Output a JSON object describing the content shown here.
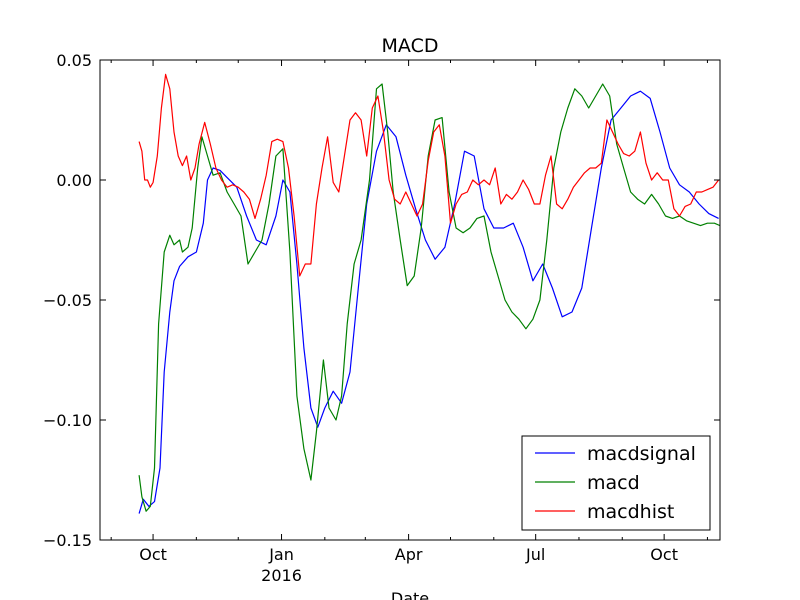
{
  "chart_data": {
    "type": "line",
    "title": "MACD",
    "xlabel": "Date",
    "ylabel": "",
    "ylim": [
      -0.15,
      0.05
    ],
    "yticks": [
      {
        "value": 0.05,
        "label": "0.05"
      },
      {
        "value": 0.0,
        "label": "0.00"
      },
      {
        "value": -0.05,
        "label": "−0.05"
      },
      {
        "value": -0.1,
        "label": "−0.10"
      },
      {
        "value": -0.15,
        "label": "−0.15"
      }
    ],
    "xlim": [
      "2015-08-24",
      "2016-11-10"
    ],
    "xticks": [
      {
        "date": "2015-10-01",
        "label": "Oct",
        "sublabel": ""
      },
      {
        "date": "2016-01-01",
        "label": "Jan",
        "sublabel": "2016"
      },
      {
        "date": "2016-04-01",
        "label": "Apr",
        "sublabel": ""
      },
      {
        "date": "2016-07-01",
        "label": "Jul",
        "sublabel": ""
      },
      {
        "date": "2016-10-01",
        "label": "Oct",
        "sublabel": ""
      }
    ],
    "minor_xticks": [
      "2015-09-01",
      "2015-11-01",
      "2015-12-01",
      "2016-02-01",
      "2016-03-01",
      "2016-05-01",
      "2016-06-01",
      "2016-08-01",
      "2016-09-01",
      "2016-11-01"
    ],
    "legend_position": "lower-right",
    "series": [
      {
        "name": "macdsignal",
        "color": "#0000ff",
        "x": [
          "2015-09-21",
          "2015-09-24",
          "2015-09-28",
          "2015-10-02",
          "2015-10-06",
          "2015-10-09",
          "2015-10-13",
          "2015-10-16",
          "2015-10-20",
          "2015-10-26",
          "2015-11-01",
          "2015-11-06",
          "2015-11-09",
          "2015-11-13",
          "2015-11-18",
          "2015-11-23",
          "2015-11-30",
          "2015-12-07",
          "2015-12-14",
          "2015-12-21",
          "2015-12-28",
          "2016-01-02",
          "2016-01-07",
          "2016-01-12",
          "2016-01-17",
          "2016-01-22",
          "2016-01-27",
          "2016-02-01",
          "2016-02-07",
          "2016-02-13",
          "2016-02-19",
          "2016-02-25",
          "2016-03-02",
          "2016-03-09",
          "2016-03-16",
          "2016-03-23",
          "2016-03-30",
          "2016-04-06",
          "2016-04-13",
          "2016-04-20",
          "2016-04-27",
          "2016-05-04",
          "2016-05-11",
          "2016-05-18",
          "2016-05-25",
          "2016-06-01",
          "2016-06-08",
          "2016-06-15",
          "2016-06-22",
          "2016-06-29",
          "2016-07-06",
          "2016-07-13",
          "2016-07-20",
          "2016-07-27",
          "2016-08-03",
          "2016-08-10",
          "2016-08-17",
          "2016-08-24",
          "2016-08-31",
          "2016-09-07",
          "2016-09-14",
          "2016-09-21",
          "2016-09-28",
          "2016-10-05",
          "2016-10-12",
          "2016-10-19",
          "2016-10-26",
          "2016-11-02",
          "2016-11-09"
        ],
        "y": [
          -0.139,
          -0.133,
          -0.136,
          -0.134,
          -0.12,
          -0.08,
          -0.055,
          -0.042,
          -0.036,
          -0.032,
          -0.03,
          -0.018,
          0.0,
          0.005,
          0.004,
          0.001,
          -0.003,
          -0.015,
          -0.025,
          -0.027,
          -0.015,
          0.0,
          -0.005,
          -0.035,
          -0.07,
          -0.095,
          -0.103,
          -0.095,
          -0.088,
          -0.093,
          -0.08,
          -0.045,
          -0.01,
          0.012,
          0.023,
          0.018,
          0.002,
          -0.012,
          -0.025,
          -0.033,
          -0.028,
          -0.01,
          0.012,
          0.01,
          -0.012,
          -0.02,
          -0.02,
          -0.018,
          -0.028,
          -0.042,
          -0.035,
          -0.045,
          -0.057,
          -0.055,
          -0.045,
          -0.02,
          0.005,
          0.025,
          0.03,
          0.035,
          0.037,
          0.034,
          0.02,
          0.005,
          -0.002,
          -0.005,
          -0.01,
          -0.014,
          -0.016
        ]
      },
      {
        "name": "macd",
        "color": "#008000",
        "x": [
          "2015-09-21",
          "2015-09-23",
          "2015-09-26",
          "2015-09-29",
          "2015-10-02",
          "2015-10-05",
          "2015-10-09",
          "2015-10-13",
          "2015-10-16",
          "2015-10-20",
          "2015-10-22",
          "2015-10-26",
          "2015-10-29",
          "2015-11-02",
          "2015-11-05",
          "2015-11-09",
          "2015-11-13",
          "2015-11-18",
          "2015-11-23",
          "2015-11-28",
          "2015-12-03",
          "2015-12-08",
          "2015-12-13",
          "2015-12-18",
          "2015-12-23",
          "2015-12-28",
          "2016-01-02",
          "2016-01-07",
          "2016-01-12",
          "2016-01-17",
          "2016-01-22",
          "2016-01-26",
          "2016-01-31",
          "2016-02-04",
          "2016-02-09",
          "2016-02-13",
          "2016-02-17",
          "2016-02-22",
          "2016-02-27",
          "2016-03-04",
          "2016-03-09",
          "2016-03-13",
          "2016-03-17",
          "2016-03-21",
          "2016-03-26",
          "2016-03-31",
          "2016-04-05",
          "2016-04-10",
          "2016-04-15",
          "2016-04-20",
          "2016-04-25",
          "2016-04-30",
          "2016-05-05",
          "2016-05-10",
          "2016-05-15",
          "2016-05-20",
          "2016-05-25",
          "2016-05-30",
          "2016-06-04",
          "2016-06-09",
          "2016-06-14",
          "2016-06-19",
          "2016-06-24",
          "2016-06-29",
          "2016-07-04",
          "2016-07-09",
          "2016-07-14",
          "2016-07-19",
          "2016-07-24",
          "2016-07-29",
          "2016-08-03",
          "2016-08-08",
          "2016-08-13",
          "2016-08-18",
          "2016-08-23",
          "2016-08-28",
          "2016-09-02",
          "2016-09-07",
          "2016-09-12",
          "2016-09-17",
          "2016-09-22",
          "2016-09-27",
          "2016-10-02",
          "2016-10-07",
          "2016-10-12",
          "2016-10-17",
          "2016-10-22",
          "2016-10-27",
          "2016-11-01",
          "2016-11-06",
          "2016-11-10"
        ],
        "y": [
          -0.123,
          -0.132,
          -0.138,
          -0.136,
          -0.12,
          -0.06,
          -0.03,
          -0.023,
          -0.027,
          -0.025,
          -0.03,
          -0.028,
          -0.02,
          0.005,
          0.018,
          0.01,
          0.002,
          0.003,
          -0.005,
          -0.01,
          -0.015,
          -0.035,
          -0.03,
          -0.025,
          -0.01,
          0.01,
          0.013,
          -0.03,
          -0.09,
          -0.112,
          -0.125,
          -0.105,
          -0.075,
          -0.095,
          -0.1,
          -0.09,
          -0.06,
          -0.035,
          -0.025,
          0.0,
          0.038,
          0.04,
          0.02,
          -0.005,
          -0.025,
          -0.044,
          -0.04,
          -0.02,
          0.01,
          0.025,
          0.026,
          -0.005,
          -0.02,
          -0.022,
          -0.02,
          -0.016,
          -0.015,
          -0.03,
          -0.04,
          -0.05,
          -0.055,
          -0.058,
          -0.062,
          -0.058,
          -0.05,
          -0.025,
          0.005,
          0.02,
          0.03,
          0.038,
          0.035,
          0.03,
          0.035,
          0.04,
          0.035,
          0.015,
          0.005,
          -0.005,
          -0.008,
          -0.01,
          -0.006,
          -0.01,
          -0.015,
          -0.016,
          -0.015,
          -0.017,
          -0.018,
          -0.019,
          -0.018,
          -0.018,
          -0.019
        ]
      },
      {
        "name": "macdhist",
        "color": "#ff0000",
        "x": [
          "2015-09-21",
          "2015-09-23",
          "2015-09-25",
          "2015-09-27",
          "2015-09-29",
          "2015-10-01",
          "2015-10-04",
          "2015-10-07",
          "2015-10-10",
          "2015-10-13",
          "2015-10-16",
          "2015-10-19",
          "2015-10-22",
          "2015-10-25",
          "2015-10-28",
          "2015-10-31",
          "2015-11-03",
          "2015-11-07",
          "2015-11-11",
          "2015-11-15",
          "2015-11-19",
          "2015-11-23",
          "2015-11-27",
          "2015-12-01",
          "2015-12-05",
          "2015-12-09",
          "2015-12-13",
          "2015-12-17",
          "2015-12-21",
          "2015-12-25",
          "2015-12-29",
          "2016-01-02",
          "2016-01-06",
          "2016-01-10",
          "2016-01-14",
          "2016-01-18",
          "2016-01-22",
          "2016-01-26",
          "2016-01-30",
          "2016-02-03",
          "2016-02-07",
          "2016-02-11",
          "2016-02-15",
          "2016-02-19",
          "2016-02-23",
          "2016-02-27",
          "2016-03-02",
          "2016-03-06",
          "2016-03-10",
          "2016-03-14",
          "2016-03-18",
          "2016-03-22",
          "2016-03-26",
          "2016-03-30",
          "2016-04-03",
          "2016-04-07",
          "2016-04-11",
          "2016-04-15",
          "2016-04-19",
          "2016-04-23",
          "2016-04-27",
          "2016-05-01",
          "2016-05-05",
          "2016-05-09",
          "2016-05-13",
          "2016-05-17",
          "2016-05-21",
          "2016-05-25",
          "2016-05-29",
          "2016-06-02",
          "2016-06-06",
          "2016-06-10",
          "2016-06-14",
          "2016-06-18",
          "2016-06-22",
          "2016-06-26",
          "2016-06-30",
          "2016-07-04",
          "2016-07-08",
          "2016-07-12",
          "2016-07-16",
          "2016-07-20",
          "2016-07-24",
          "2016-07-28",
          "2016-08-01",
          "2016-08-05",
          "2016-08-09",
          "2016-08-13",
          "2016-08-17",
          "2016-08-21",
          "2016-08-25",
          "2016-08-29",
          "2016-09-02",
          "2016-09-06",
          "2016-09-10",
          "2016-09-14",
          "2016-09-18",
          "2016-09-22",
          "2016-09-26",
          "2016-09-30",
          "2016-10-04",
          "2016-10-08",
          "2016-10-12",
          "2016-10-16",
          "2016-10-20",
          "2016-10-24",
          "2016-10-28",
          "2016-11-01",
          "2016-11-05",
          "2016-11-09"
        ],
        "y": [
          0.016,
          0.012,
          0.0,
          0.0,
          -0.003,
          -0.001,
          0.01,
          0.03,
          0.044,
          0.038,
          0.02,
          0.01,
          0.006,
          0.01,
          0.0,
          0.005,
          0.015,
          0.024,
          0.015,
          0.005,
          0.0,
          -0.003,
          -0.002,
          -0.003,
          -0.005,
          -0.008,
          -0.016,
          -0.008,
          0.002,
          0.016,
          0.017,
          0.016,
          0.005,
          -0.015,
          -0.04,
          -0.035,
          -0.035,
          -0.01,
          0.005,
          0.018,
          -0.001,
          -0.005,
          0.01,
          0.025,
          0.028,
          0.025,
          0.01,
          0.03,
          0.035,
          0.02,
          0.0,
          -0.008,
          -0.01,
          -0.005,
          -0.01,
          -0.015,
          -0.01,
          0.008,
          0.02,
          0.023,
          0.01,
          -0.018,
          -0.01,
          -0.006,
          -0.005,
          0.0,
          -0.002,
          0.0,
          -0.002,
          0.005,
          -0.01,
          -0.006,
          -0.008,
          -0.005,
          0.0,
          -0.004,
          -0.01,
          -0.01,
          0.002,
          0.01,
          -0.01,
          -0.012,
          -0.008,
          -0.003,
          0.0,
          0.003,
          0.005,
          0.005,
          0.007,
          0.025,
          0.02,
          0.015,
          0.011,
          0.01,
          0.012,
          0.02,
          0.007,
          0.0,
          0.003,
          0.0,
          0.0,
          -0.012,
          -0.015,
          -0.011,
          -0.01,
          -0.005,
          -0.005,
          -0.004,
          -0.003,
          0.0
        ]
      }
    ]
  }
}
